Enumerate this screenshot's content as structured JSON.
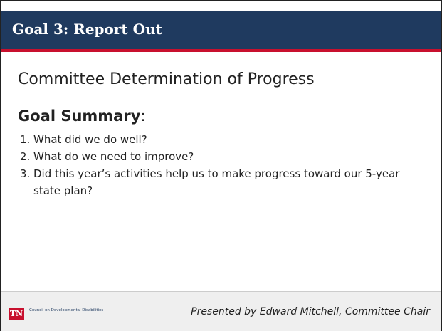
{
  "header": {
    "title": "Goal 3: Report Out"
  },
  "subtitle": "Committee Determination of Progress",
  "summary": {
    "heading": "Goal Summary",
    "punct": ":"
  },
  "questions": [
    "What did we do well?",
    "What do we need to improve?",
    "Did this year’s activities help us to make progress toward our 5-year state plan?"
  ],
  "footer": {
    "logo": "TN",
    "org": "Council on Developmental Disabilities",
    "presenter": "Presented by Edward Mitchell, Committee Chair"
  }
}
